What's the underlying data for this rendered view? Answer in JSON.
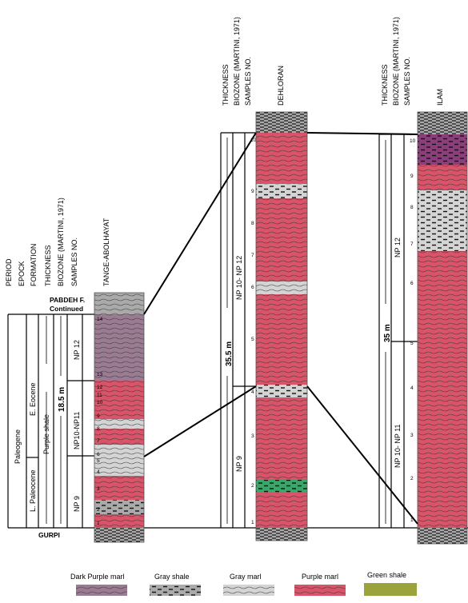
{
  "colors": {
    "dark_purple_marl": "#9a7b92",
    "gray_shale": "#aaaaaa",
    "gray_marl": "#d4d4d4",
    "purple_marl": "#d95468",
    "green_shale": "#38a86a",
    "legend_green_shale": "#9aa33c",
    "ilam_dark_top": "#8a3f7a",
    "pattern_line": "#333333",
    "frame": "#000000"
  },
  "tange": {
    "headers": [
      "PERIOD",
      "EPOCK",
      "FORMATION",
      "THICKNESS",
      "BIOZONE (MARTINI, 1971)",
      "SAMPLES NO."
    ],
    "section_name": "TANGE-ABOLHAYAT",
    "top_formation": "PABDEH F.\nContinued",
    "base_formation": "GURPI",
    "period": "Paleogene",
    "epochs": [
      "E. Eocene",
      "L. Paleocene"
    ],
    "formation": "Purple shale",
    "thickness": "18.5 m",
    "biozones": [
      "NP 12",
      "NP10-NP11",
      "NP 9"
    ],
    "samples": [
      "14",
      "13",
      "12",
      "11",
      "10",
      "9",
      "8",
      "7",
      "6",
      "5",
      "4",
      "3",
      "2",
      "1"
    ],
    "layers": [
      {
        "lithology": "gray_shale_wavy"
      },
      {
        "lithology": "dark_purple_marl"
      },
      {
        "lithology": "purple_marl"
      },
      {
        "lithology": "gray_marl"
      },
      {
        "lithology": "purple_marl"
      },
      {
        "lithology": "gray_marl"
      },
      {
        "lithology": "gray_marl"
      },
      {
        "lithology": "purple_marl"
      },
      {
        "lithology": "gray_shale"
      },
      {
        "lithology": "purple_marl"
      },
      {
        "lithology": "gray_shale"
      }
    ]
  },
  "dehloran": {
    "headers": [
      "THICKNESS",
      "BIOZONE (MARTINI, 1971)",
      "SAMPLES NO."
    ],
    "section_name": "DEHLORAN",
    "thickness": "35.5 m",
    "biozones": [
      "NP 10- NP 12",
      "NP 9"
    ],
    "samples": [
      "10",
      "9",
      "8",
      "7",
      "6",
      "5",
      "4",
      "3",
      "2",
      "1"
    ],
    "layers": [
      {
        "lithology": "gray_shale"
      },
      {
        "lithology": "purple_marl"
      },
      {
        "lithology": "gray_marl"
      },
      {
        "lithology": "purple_marl"
      },
      {
        "lithology": "gray_marl"
      },
      {
        "lithology": "purple_marl"
      },
      {
        "lithology": "gray_shale"
      },
      {
        "lithology": "purple_marl"
      },
      {
        "lithology": "green_shale"
      },
      {
        "lithology": "purple_marl"
      },
      {
        "lithology": "gray_shale"
      }
    ]
  },
  "ilam": {
    "headers": [
      "THICKNESS",
      "BIOZONE (MARTINI, 1971)",
      "SAMPLES NO."
    ],
    "section_name": "ILAM",
    "thickness": "35 m",
    "biozones": [
      "NP 12",
      "NP 10- NP 11"
    ],
    "samples": [
      "10",
      "9",
      "8",
      "7",
      "6",
      "5",
      "4",
      "3",
      "2",
      "1"
    ],
    "layers": [
      {
        "lithology": "gray_shale"
      },
      {
        "lithology": "ilam_dark_top"
      },
      {
        "lithology": "purple_marl"
      },
      {
        "lithology": "gray_marl"
      },
      {
        "lithology": "purple_marl"
      },
      {
        "lithology": "gray_shale"
      }
    ]
  },
  "legend": [
    {
      "label": "Dark Purple marl",
      "swatch": "dark_purple_marl"
    },
    {
      "label": "Gray shale",
      "swatch": "gray_shale"
    },
    {
      "label": "Gray marl",
      "swatch": "gray_marl"
    },
    {
      "label": "Purple marl",
      "swatch": "purple_marl"
    },
    {
      "label": "Green  shale",
      "swatch": "legend_green_shale"
    }
  ]
}
